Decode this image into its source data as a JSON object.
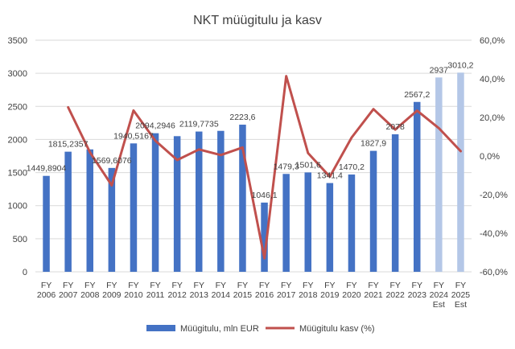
{
  "colors": {
    "bar": "#4472c4",
    "bar_estimate": "#b4c7e7",
    "line": "#c0504d",
    "grid": "#d9d9d9",
    "text": "#404040"
  },
  "chart_data": {
    "type": "bar",
    "title": "NKT müügitulu ja kasv",
    "categories": [
      [
        "FY",
        "2006"
      ],
      [
        "FY",
        "2007"
      ],
      [
        "FY",
        "2008"
      ],
      [
        "FY",
        "2009"
      ],
      [
        "FY",
        "2010"
      ],
      [
        "FY",
        "2011"
      ],
      [
        "FY",
        "2012"
      ],
      [
        "FY",
        "2013"
      ],
      [
        "FY",
        "2014"
      ],
      [
        "FY",
        "2015"
      ],
      [
        "FY",
        "2016"
      ],
      [
        "FY",
        "2017"
      ],
      [
        "FY",
        "2018"
      ],
      [
        "FY",
        "2019"
      ],
      [
        "FY",
        "2020"
      ],
      [
        "FY",
        "2021"
      ],
      [
        "FY",
        "2022"
      ],
      [
        "FY",
        "2023"
      ],
      [
        "FY",
        "2024",
        "Est"
      ],
      [
        "FY",
        "2025",
        "Est"
      ]
    ],
    "estimate_flags": [
      false,
      false,
      false,
      false,
      false,
      false,
      false,
      false,
      false,
      false,
      false,
      false,
      false,
      false,
      false,
      false,
      false,
      false,
      true,
      true
    ],
    "ylim_left": [
      0,
      3500
    ],
    "yticks_left": [
      0,
      500,
      1000,
      1500,
      2000,
      2500,
      3000,
      3500
    ],
    "ytick_labels_left": [
      "0",
      "500",
      "1000",
      "1500",
      "2000",
      "2500",
      "3000",
      "3500"
    ],
    "ylim_right": [
      -60,
      60
    ],
    "yticks_right": [
      -60,
      -40,
      -20,
      0,
      20,
      40,
      60
    ],
    "ytick_labels_right": [
      "-60,0%",
      "-40,0%",
      "-20,0%",
      "0,0%",
      "20,0%",
      "40,0%",
      "60,0%"
    ],
    "grid": true,
    "legend_position": "bottom",
    "series": [
      {
        "name": "Müügitulu, mln EUR",
        "kind": "bar",
        "axis": "left",
        "values": [
          1449.8904,
          1815.2357,
          1850,
          1569.6076,
          1940.5167,
          2094.2946,
          2050,
          2119.7735,
          2130,
          2223.6,
          1046.1,
          1479.3,
          1501.6,
          1341.4,
          1470.2,
          1827.9,
          2078,
          2567.2,
          2937,
          3010.2
        ],
        "data_labels": [
          "1449,8904",
          "1815,2357",
          "",
          "1569,6076",
          "1940,5167",
          "2094,2946",
          "",
          "2119,7735",
          "",
          "2223,6",
          "1046,1",
          "1479,3",
          "1501,6",
          "1341,4",
          "1470,2",
          "1827,9",
          "2078",
          "2567,2",
          "2937",
          "3010,2"
        ]
      },
      {
        "name": "Müügitulu kasv (%)",
        "kind": "line",
        "axis": "right",
        "values": [
          null,
          25.2,
          1.9,
          -15.2,
          23.6,
          7.9,
          -2.1,
          3.4,
          0.5,
          4.4,
          -53.0,
          41.4,
          1.5,
          -10.7,
          9.6,
          24.3,
          13.7,
          23.5,
          14.4,
          2.5
        ]
      }
    ]
  }
}
